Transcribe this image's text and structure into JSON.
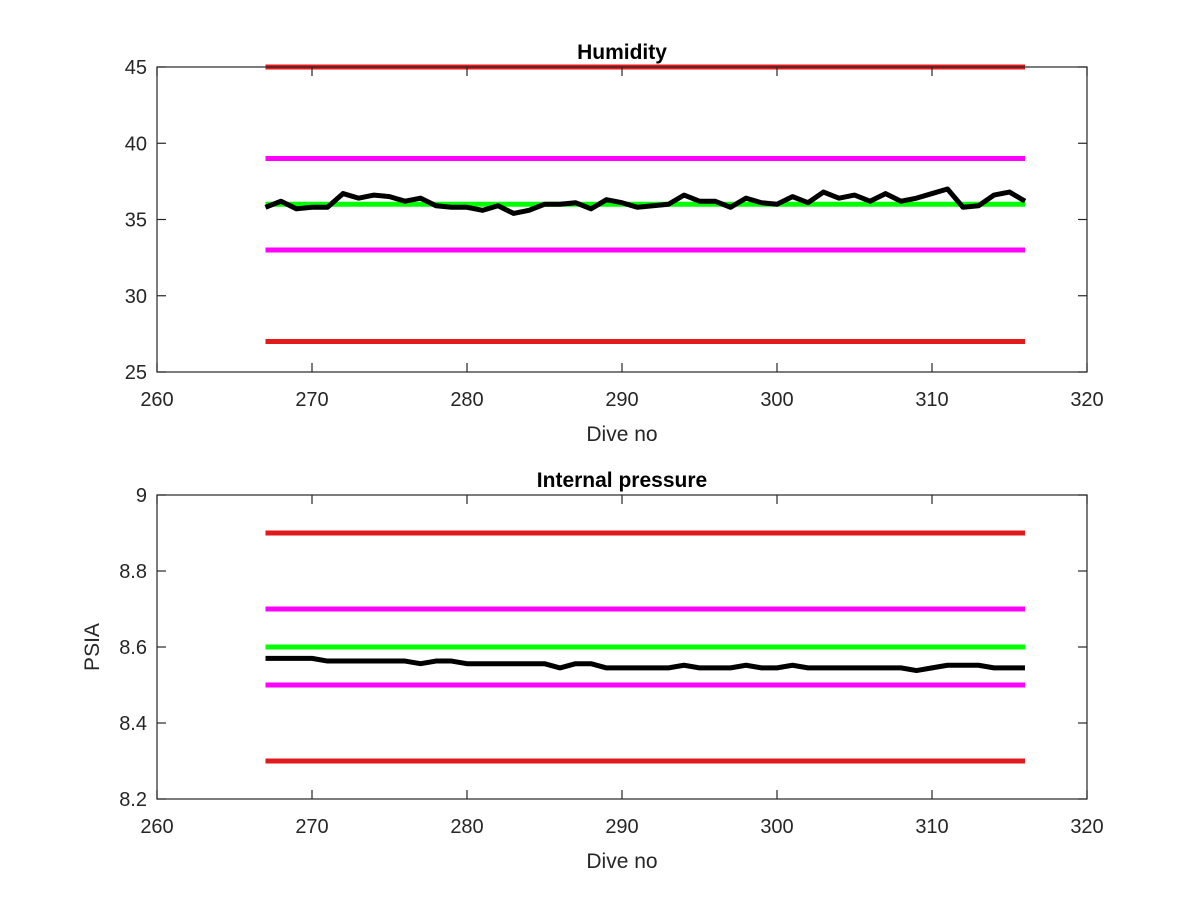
{
  "chart_data": [
    {
      "type": "line",
      "title": "Humidity",
      "xlabel": "Dive no",
      "ylabel": "",
      "xlim": [
        260,
        320
      ],
      "ylim": [
        25,
        45
      ],
      "xticks": [
        260,
        270,
        280,
        290,
        300,
        310,
        320
      ],
      "yticks": [
        25,
        30,
        35,
        40,
        45
      ],
      "grid": false,
      "series": [
        {
          "color": "#e31a1c",
          "x": [
            267,
            316
          ],
          "y": [
            45,
            45
          ]
        },
        {
          "color": "#ff00ff",
          "x": [
            267,
            316
          ],
          "y": [
            39,
            39
          ]
        },
        {
          "color": "#00ff00",
          "x": [
            267,
            316
          ],
          "y": [
            36,
            36
          ]
        },
        {
          "color": "#ff00ff",
          "x": [
            267,
            316
          ],
          "y": [
            33,
            33
          ]
        },
        {
          "color": "#e31a1c",
          "x": [
            267,
            316
          ],
          "y": [
            27,
            27
          ]
        },
        {
          "color": "#000000",
          "x": [
            267,
            268,
            269,
            270,
            271,
            272,
            273,
            274,
            275,
            276,
            277,
            278,
            279,
            280,
            281,
            282,
            283,
            284,
            285,
            286,
            287,
            288,
            289,
            290,
            291,
            292,
            293,
            294,
            295,
            296,
            297,
            298,
            299,
            300,
            301,
            302,
            303,
            304,
            305,
            306,
            307,
            308,
            309,
            310,
            311,
            312,
            313,
            314,
            315,
            316
          ],
          "y": [
            35.8,
            36.2,
            35.7,
            35.8,
            35.8,
            36.7,
            36.4,
            36.6,
            36.5,
            36.2,
            36.4,
            35.9,
            35.8,
            35.8,
            35.6,
            35.9,
            35.4,
            35.6,
            36.0,
            36.0,
            36.1,
            35.7,
            36.3,
            36.1,
            35.8,
            35.9,
            36.0,
            36.6,
            36.2,
            36.2,
            35.8,
            36.4,
            36.1,
            36.0,
            36.5,
            36.1,
            36.8,
            36.4,
            36.6,
            36.2,
            36.7,
            36.2,
            36.4,
            36.7,
            37.0,
            35.8,
            35.9,
            36.6,
            36.8,
            36.2
          ]
        }
      ]
    },
    {
      "type": "line",
      "title": "Internal pressure",
      "xlabel": "Dive no",
      "ylabel": "PSIA",
      "xlim": [
        260,
        320
      ],
      "ylim": [
        8.2,
        9
      ],
      "xticks": [
        260,
        270,
        280,
        290,
        300,
        310,
        320
      ],
      "yticks": [
        8.2,
        8.4,
        8.6,
        8.8,
        9
      ],
      "grid": false,
      "series": [
        {
          "color": "#e31a1c",
          "x": [
            267,
            316
          ],
          "y": [
            8.9,
            8.9
          ]
        },
        {
          "color": "#ff00ff",
          "x": [
            267,
            316
          ],
          "y": [
            8.7,
            8.7
          ]
        },
        {
          "color": "#00ff00",
          "x": [
            267,
            316
          ],
          "y": [
            8.6,
            8.6
          ]
        },
        {
          "color": "#ff00ff",
          "x": [
            267,
            316
          ],
          "y": [
            8.5,
            8.5
          ]
        },
        {
          "color": "#e31a1c",
          "x": [
            267,
            316
          ],
          "y": [
            8.3,
            8.3
          ]
        },
        {
          "color": "#000000",
          "x": [
            267,
            268,
            269,
            270,
            271,
            272,
            273,
            274,
            275,
            276,
            277,
            278,
            279,
            280,
            281,
            282,
            283,
            284,
            285,
            286,
            287,
            288,
            289,
            290,
            291,
            292,
            293,
            294,
            295,
            296,
            297,
            298,
            299,
            300,
            301,
            302,
            303,
            304,
            305,
            306,
            307,
            308,
            309,
            310,
            311,
            312,
            313,
            314,
            315,
            316
          ],
          "y": [
            8.57,
            8.57,
            8.57,
            8.57,
            8.563,
            8.563,
            8.563,
            8.563,
            8.563,
            8.563,
            8.556,
            8.563,
            8.563,
            8.556,
            8.556,
            8.556,
            8.556,
            8.556,
            8.556,
            8.545,
            8.556,
            8.556,
            8.545,
            8.545,
            8.545,
            8.545,
            8.545,
            8.552,
            8.545,
            8.545,
            8.545,
            8.552,
            8.545,
            8.545,
            8.552,
            8.545,
            8.545,
            8.545,
            8.545,
            8.545,
            8.545,
            8.545,
            8.538,
            8.545,
            8.552,
            8.552,
            8.552,
            8.545,
            8.545,
            8.545
          ]
        }
      ]
    }
  ]
}
